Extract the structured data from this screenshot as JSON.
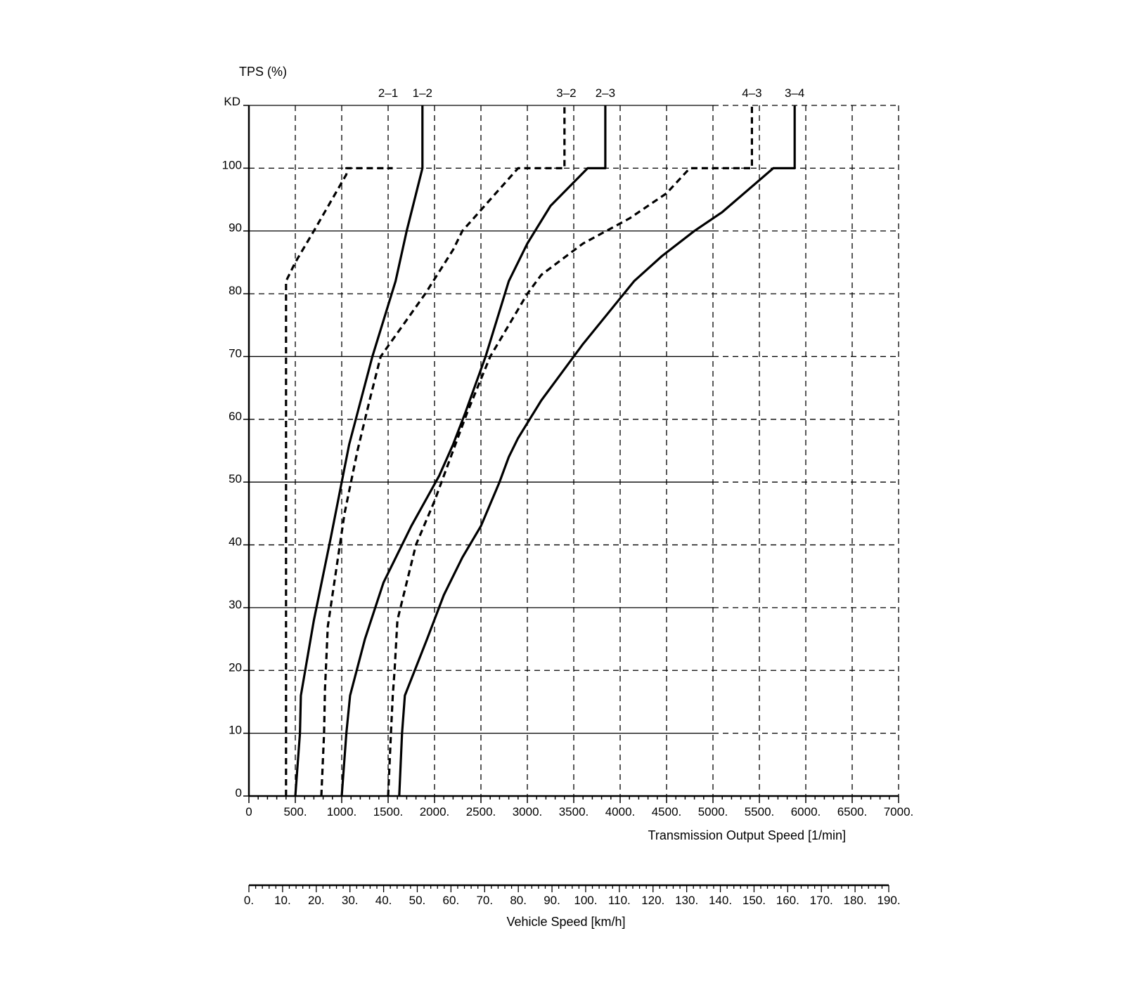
{
  "chart_data": {
    "type": "line",
    "title": "",
    "ylabel": "TPS (%)",
    "xlabel": "Transmission Output Speed [1/min]",
    "secondary_xlabel": "Vehicle Speed [km/h]",
    "xlim": [
      0,
      7000
    ],
    "ylim": [
      0,
      110
    ],
    "kd_label": "KD",
    "kd_value": 110,
    "y_ticks": [
      {
        "value": 0,
        "label": "0"
      },
      {
        "value": 10,
        "label": "10"
      },
      {
        "value": 20,
        "label": "20"
      },
      {
        "value": 30,
        "label": "30"
      },
      {
        "value": 40,
        "label": "40"
      },
      {
        "value": 50,
        "label": "50"
      },
      {
        "value": 60,
        "label": "60"
      },
      {
        "value": 70,
        "label": "70"
      },
      {
        "value": 80,
        "label": "80"
      },
      {
        "value": 90,
        "label": "90"
      },
      {
        "value": 100,
        "label": "100"
      }
    ],
    "x_ticks": [
      {
        "value": 0,
        "label": "0"
      },
      {
        "value": 500,
        "label": "500."
      },
      {
        "value": 1000,
        "label": "1000."
      },
      {
        "value": 1500,
        "label": "1500."
      },
      {
        "value": 2000,
        "label": "2000."
      },
      {
        "value": 2500,
        "label": "2500."
      },
      {
        "value": 3000,
        "label": "3000."
      },
      {
        "value": 3500,
        "label": "3500."
      },
      {
        "value": 4000,
        "label": "4000."
      },
      {
        "value": 4500,
        "label": "4500."
      },
      {
        "value": 5000,
        "label": "5000."
      },
      {
        "value": 5500,
        "label": "5500."
      },
      {
        "value": 6000,
        "label": "6000."
      },
      {
        "value": 6500,
        "label": "6500."
      },
      {
        "value": 7000,
        "label": "7000."
      }
    ],
    "vehicle_speed_axis": {
      "range": [
        0,
        190
      ],
      "ticks": [
        "0.",
        "10.",
        "20.",
        "30.",
        "40.",
        "50.",
        "60.",
        "70.",
        "80.",
        "90.",
        "100.",
        "110.",
        "120.",
        "130.",
        "140.",
        "150.",
        "160.",
        "170.",
        "180.",
        "190."
      ]
    },
    "series": [
      {
        "name": "2-1",
        "style": "dashed",
        "label_x": 1500,
        "points": [
          [
            400,
            0
          ],
          [
            400,
            82
          ],
          [
            500,
            85
          ],
          [
            700,
            90
          ],
          [
            1050,
            99
          ],
          [
            1050,
            100
          ],
          [
            1550,
            100
          ]
        ]
      },
      {
        "name": "1-2",
        "style": "solid",
        "label_x": 1870,
        "points": [
          [
            500,
            0
          ],
          [
            550,
            10
          ],
          [
            560,
            16
          ],
          [
            700,
            28
          ],
          [
            880,
            41
          ],
          [
            1000,
            50
          ],
          [
            1080,
            56
          ],
          [
            1330,
            70
          ],
          [
            1580,
            82
          ],
          [
            1700,
            90
          ],
          [
            1870,
            100
          ],
          [
            1870,
            110
          ]
        ]
      },
      {
        "name": "3-2",
        "style": "dashed",
        "label_x": 3420,
        "points": [
          [
            780,
            0
          ],
          [
            810,
            10
          ],
          [
            820,
            17
          ],
          [
            850,
            27
          ],
          [
            980,
            40
          ],
          [
            1030,
            45
          ],
          [
            1170,
            55
          ],
          [
            1300,
            63
          ],
          [
            1420,
            70
          ],
          [
            1900,
            80
          ],
          [
            2200,
            87
          ],
          [
            2300,
            90
          ],
          [
            2900,
            100
          ],
          [
            3400,
            100
          ],
          [
            3400,
            110
          ]
        ]
      },
      {
        "name": "2-3",
        "style": "solid",
        "label_x": 3840,
        "points": [
          [
            1000,
            0
          ],
          [
            1050,
            10
          ],
          [
            1090,
            16
          ],
          [
            1250,
            25
          ],
          [
            1450,
            34
          ],
          [
            1750,
            43
          ],
          [
            1900,
            47
          ],
          [
            2050,
            51
          ],
          [
            2200,
            56
          ],
          [
            2330,
            61
          ],
          [
            2550,
            70
          ],
          [
            2800,
            82
          ],
          [
            3000,
            88
          ],
          [
            3250,
            94
          ],
          [
            3650,
            100
          ],
          [
            3840,
            100
          ],
          [
            3840,
            110
          ]
        ]
      },
      {
        "name": "4-3",
        "style": "dashed",
        "label_x": 5420,
        "points": [
          [
            1500,
            0
          ],
          [
            1530,
            10
          ],
          [
            1550,
            16
          ],
          [
            1570,
            20
          ],
          [
            1600,
            28
          ],
          [
            1800,
            40
          ],
          [
            2000,
            47
          ],
          [
            2200,
            55
          ],
          [
            2350,
            61
          ],
          [
            2600,
            70
          ],
          [
            3000,
            80
          ],
          [
            3150,
            83
          ],
          [
            3600,
            88
          ],
          [
            4100,
            92
          ],
          [
            4500,
            96
          ],
          [
            4750,
            100
          ],
          [
            5420,
            100
          ],
          [
            5420,
            110
          ]
        ]
      },
      {
        "name": "3-4",
        "style": "solid",
        "label_x": 5880,
        "points": [
          [
            1620,
            0
          ],
          [
            1650,
            10
          ],
          [
            1680,
            16
          ],
          [
            1920,
            25
          ],
          [
            2100,
            32
          ],
          [
            2300,
            38
          ],
          [
            2500,
            43
          ],
          [
            2700,
            50
          ],
          [
            2800,
            54
          ],
          [
            2900,
            57
          ],
          [
            3150,
            63
          ],
          [
            3400,
            68
          ],
          [
            3600,
            72
          ],
          [
            4150,
            82
          ],
          [
            4450,
            86
          ],
          [
            4800,
            90
          ],
          [
            5100,
            93
          ],
          [
            5650,
            100
          ],
          [
            5880,
            100
          ],
          [
            5880,
            110
          ]
        ]
      }
    ]
  }
}
